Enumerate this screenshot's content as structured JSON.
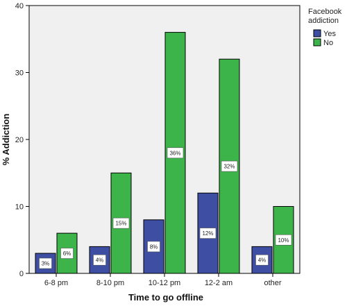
{
  "chart_data": {
    "type": "bar",
    "title": "",
    "xlabel": "Time to go offline",
    "ylabel": "% Addiction",
    "ylim": [
      0,
      40
    ],
    "yticks": [
      0,
      10,
      20,
      30,
      40
    ],
    "grid": false,
    "categories": [
      "6-8 pm",
      "8-10 pm",
      "10-12 pm",
      "12-2 am",
      "other"
    ],
    "series": [
      {
        "name": "Yes",
        "color": "#3e4fa3",
        "values": [
          3,
          4,
          8,
          12,
          4
        ],
        "labels": [
          "3%",
          "4%",
          "8%",
          "12%",
          "4%"
        ]
      },
      {
        "name": "No",
        "color": "#3cb44a",
        "values": [
          6,
          15,
          36,
          32,
          10
        ],
        "labels": [
          "6%",
          "15%",
          "36%",
          "32%",
          "10%"
        ]
      }
    ],
    "legend": {
      "title_line1": "Facebook",
      "title_line2": "addiction",
      "placement": "right"
    },
    "plot_background": "#f0f0f0"
  }
}
